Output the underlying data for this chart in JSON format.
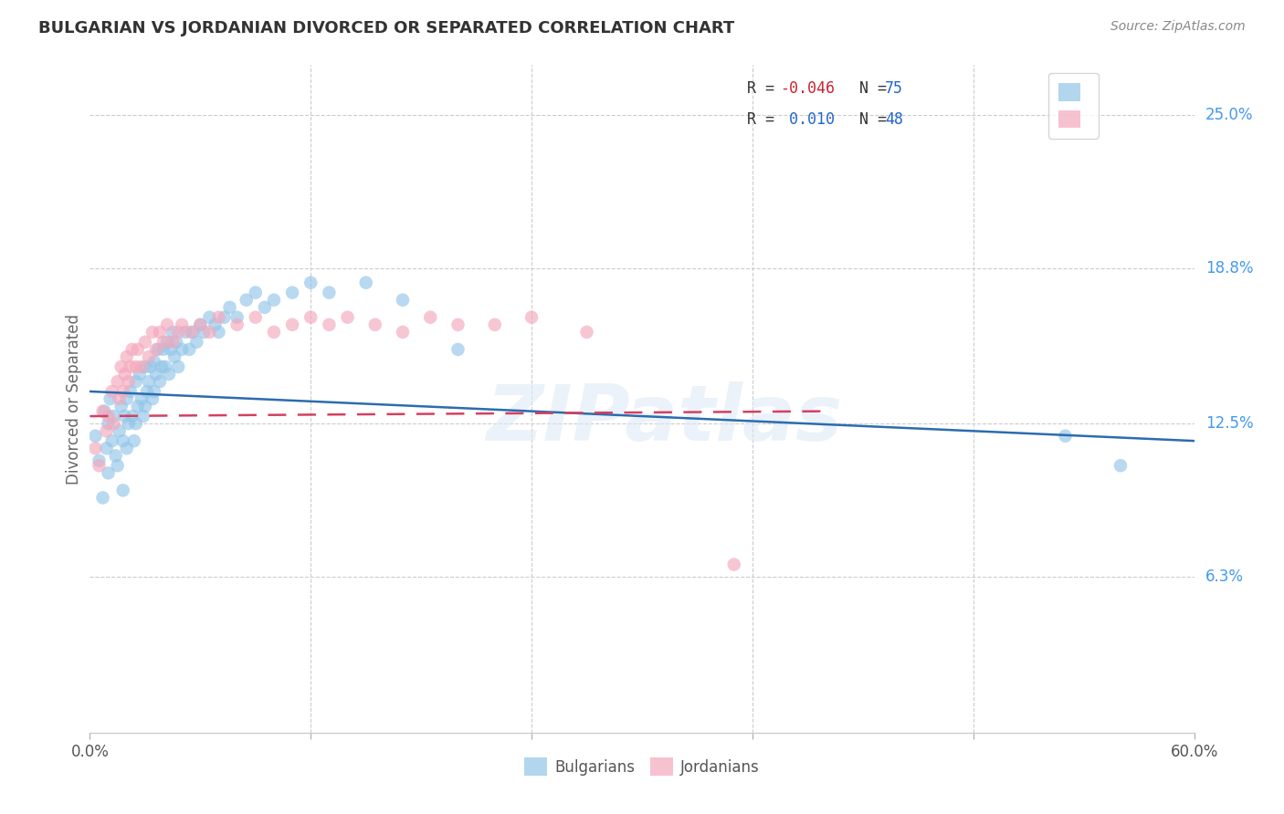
{
  "title": "BULGARIAN VS JORDANIAN DIVORCED OR SEPARATED CORRELATION CHART",
  "source": "Source: ZipAtlas.com",
  "ylabel": "Divorced or Separated",
  "xlim": [
    0.0,
    0.6
  ],
  "ylim": [
    0.0,
    0.27
  ],
  "ytick_vals": [
    0.063,
    0.125,
    0.188,
    0.25
  ],
  "ytick_labels": [
    "6.3%",
    "12.5%",
    "18.8%",
    "25.0%"
  ],
  "xtick_vals": [
    0.0,
    0.12,
    0.24,
    0.36,
    0.48,
    0.6
  ],
  "xtick_labels": [
    "0.0%",
    "",
    "",
    "",
    "",
    "60.0%"
  ],
  "blue_color": "#92C5E8",
  "pink_color": "#F4A8BC",
  "line_blue_color": "#2B6CB0",
  "line_pink_color": "#D44060",
  "watermark": "ZIPatlas",
  "legend_r1": "R = -0.046",
  "legend_n1": "N = 75",
  "legend_r2": "R =  0.010",
  "legend_n2": "N = 48",
  "bulgarians_x": [
    0.003,
    0.005,
    0.007,
    0.008,
    0.009,
    0.01,
    0.01,
    0.011,
    0.012,
    0.013,
    0.014,
    0.015,
    0.016,
    0.017,
    0.018,
    0.018,
    0.019,
    0.02,
    0.02,
    0.021,
    0.022,
    0.023,
    0.024,
    0.025,
    0.025,
    0.026,
    0.027,
    0.028,
    0.029,
    0.03,
    0.03,
    0.031,
    0.032,
    0.033,
    0.034,
    0.035,
    0.035,
    0.036,
    0.037,
    0.038,
    0.039,
    0.04,
    0.041,
    0.042,
    0.043,
    0.044,
    0.045,
    0.046,
    0.047,
    0.048,
    0.05,
    0.052,
    0.054,
    0.056,
    0.058,
    0.06,
    0.062,
    0.065,
    0.068,
    0.07,
    0.073,
    0.076,
    0.08,
    0.085,
    0.09,
    0.095,
    0.1,
    0.11,
    0.12,
    0.13,
    0.15,
    0.17,
    0.2,
    0.53,
    0.56
  ],
  "bulgarians_y": [
    0.12,
    0.11,
    0.095,
    0.13,
    0.115,
    0.125,
    0.105,
    0.135,
    0.118,
    0.128,
    0.112,
    0.108,
    0.122,
    0.132,
    0.118,
    0.098,
    0.128,
    0.135,
    0.115,
    0.125,
    0.138,
    0.128,
    0.118,
    0.142,
    0.125,
    0.132,
    0.145,
    0.135,
    0.128,
    0.148,
    0.132,
    0.138,
    0.142,
    0.148,
    0.135,
    0.15,
    0.138,
    0.145,
    0.155,
    0.142,
    0.148,
    0.155,
    0.148,
    0.158,
    0.145,
    0.155,
    0.162,
    0.152,
    0.158,
    0.148,
    0.155,
    0.162,
    0.155,
    0.162,
    0.158,
    0.165,
    0.162,
    0.168,
    0.165,
    0.162,
    0.168,
    0.172,
    0.168,
    0.175,
    0.178,
    0.172,
    0.175,
    0.178,
    0.182,
    0.178,
    0.182,
    0.175,
    0.155,
    0.12,
    0.108
  ],
  "jordanians_x": [
    0.003,
    0.005,
    0.007,
    0.009,
    0.01,
    0.012,
    0.013,
    0.015,
    0.016,
    0.017,
    0.018,
    0.019,
    0.02,
    0.021,
    0.022,
    0.023,
    0.025,
    0.026,
    0.028,
    0.03,
    0.032,
    0.034,
    0.036,
    0.038,
    0.04,
    0.042,
    0.045,
    0.048,
    0.05,
    0.055,
    0.06,
    0.065,
    0.07,
    0.08,
    0.09,
    0.1,
    0.11,
    0.12,
    0.13,
    0.14,
    0.155,
    0.17,
    0.185,
    0.2,
    0.22,
    0.24,
    0.27,
    0.35
  ],
  "jordanians_y": [
    0.115,
    0.108,
    0.13,
    0.122,
    0.128,
    0.138,
    0.125,
    0.142,
    0.135,
    0.148,
    0.138,
    0.145,
    0.152,
    0.142,
    0.148,
    0.155,
    0.148,
    0.155,
    0.148,
    0.158,
    0.152,
    0.162,
    0.155,
    0.162,
    0.158,
    0.165,
    0.158,
    0.162,
    0.165,
    0.162,
    0.165,
    0.162,
    0.168,
    0.165,
    0.168,
    0.162,
    0.165,
    0.168,
    0.165,
    0.168,
    0.165,
    0.162,
    0.168,
    0.165,
    0.165,
    0.168,
    0.162,
    0.068
  ],
  "blue_line_x": [
    0.0,
    0.6
  ],
  "blue_line_y": [
    0.138,
    0.118
  ],
  "pink_line_x": [
    0.0,
    0.4
  ],
  "pink_line_y": [
    0.128,
    0.13
  ]
}
